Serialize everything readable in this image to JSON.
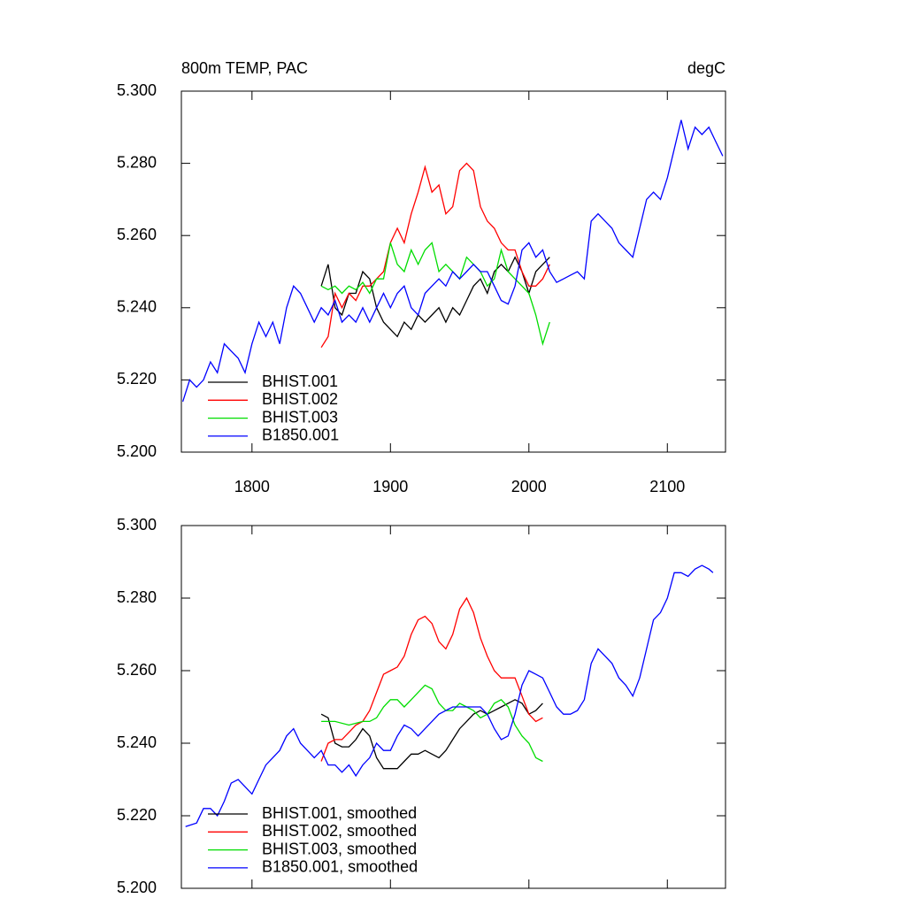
{
  "chart_data": [
    {
      "type": "line",
      "title": "800m TEMP, PAC",
      "right_title": "degC",
      "xlim": [
        1749,
        2142
      ],
      "xticks": [
        1800,
        1900,
        2000,
        2100
      ],
      "ylim": [
        5.2,
        5.3
      ],
      "yticks": [
        {
          "value": 5.2,
          "label": "5.200"
        },
        {
          "value": 5.22,
          "label": "5.220"
        },
        {
          "value": 5.24,
          "label": "5.240"
        },
        {
          "value": 5.26,
          "label": "5.260"
        },
        {
          "value": 5.28,
          "label": "5.280"
        },
        {
          "value": 5.3,
          "label": "5.300"
        }
      ],
      "grid": false,
      "legend": "lower left",
      "series": [
        {
          "name": "BHIST.001",
          "color": "#000000",
          "x": [
            1850,
            1855,
            1860,
            1865,
            1870,
            1875,
            1880,
            1885,
            1890,
            1895,
            1900,
            1905,
            1910,
            1915,
            1920,
            1925,
            1930,
            1935,
            1940,
            1945,
            1950,
            1955,
            1960,
            1965,
            1970,
            1975,
            1980,
            1985,
            1990,
            1995,
            2000,
            2005,
            2010,
            2015
          ],
          "values": [
            5.246,
            5.252,
            5.24,
            5.238,
            5.244,
            5.244,
            5.25,
            5.248,
            5.24,
            5.236,
            5.234,
            5.232,
            5.236,
            5.234,
            5.238,
            5.236,
            5.238,
            5.24,
            5.236,
            5.24,
            5.238,
            5.242,
            5.246,
            5.248,
            5.244,
            5.25,
            5.252,
            5.25,
            5.254,
            5.25,
            5.244,
            5.25,
            5.252,
            5.254
          ]
        },
        {
          "name": "BHIST.002",
          "color": "#ff0000",
          "x": [
            1850,
            1855,
            1860,
            1865,
            1870,
            1875,
            1880,
            1885,
            1890,
            1895,
            1900,
            1905,
            1910,
            1915,
            1920,
            1925,
            1930,
            1935,
            1940,
            1945,
            1950,
            1955,
            1960,
            1965,
            1970,
            1975,
            1980,
            1985,
            1990,
            1995,
            2000,
            2005,
            2010,
            2015
          ],
          "values": [
            5.229,
            5.232,
            5.244,
            5.24,
            5.244,
            5.242,
            5.246,
            5.246,
            5.248,
            5.25,
            5.258,
            5.262,
            5.258,
            5.266,
            5.272,
            5.279,
            5.272,
            5.274,
            5.266,
            5.268,
            5.278,
            5.28,
            5.278,
            5.268,
            5.264,
            5.262,
            5.258,
            5.256,
            5.256,
            5.25,
            5.246,
            5.246,
            5.248,
            5.252
          ]
        },
        {
          "name": "BHIST.003",
          "color": "#00dd00",
          "x": [
            1850,
            1855,
            1860,
            1865,
            1870,
            1875,
            1880,
            1885,
            1890,
            1895,
            1900,
            1905,
            1910,
            1915,
            1920,
            1925,
            1930,
            1935,
            1940,
            1945,
            1950,
            1955,
            1960,
            1965,
            1970,
            1975,
            1980,
            1985,
            1990,
            1995,
            2000,
            2005,
            2010,
            2015
          ],
          "values": [
            5.246,
            5.245,
            5.246,
            5.244,
            5.246,
            5.245,
            5.247,
            5.244,
            5.248,
            5.248,
            5.258,
            5.252,
            5.25,
            5.256,
            5.252,
            5.256,
            5.258,
            5.25,
            5.252,
            5.25,
            5.248,
            5.254,
            5.252,
            5.25,
            5.246,
            5.248,
            5.256,
            5.25,
            5.248,
            5.246,
            5.244,
            5.238,
            5.23,
            5.236
          ]
        },
        {
          "name": "B1850.001",
          "color": "#0000ff",
          "x": [
            1750,
            1755,
            1760,
            1765,
            1770,
            1775,
            1780,
            1785,
            1790,
            1795,
            1800,
            1805,
            1810,
            1815,
            1820,
            1825,
            1830,
            1835,
            1840,
            1845,
            1850,
            1855,
            1860,
            1865,
            1870,
            1875,
            1880,
            1885,
            1890,
            1895,
            1900,
            1905,
            1910,
            1915,
            1920,
            1925,
            1930,
            1935,
            1940,
            1945,
            1950,
            1955,
            1960,
            1965,
            1970,
            1975,
            1980,
            1985,
            1990,
            1995,
            2000,
            2005,
            2010,
            2015,
            2020,
            2025,
            2030,
            2035,
            2040,
            2045,
            2050,
            2055,
            2060,
            2065,
            2070,
            2075,
            2080,
            2085,
            2090,
            2095,
            2100,
            2105,
            2110,
            2115,
            2120,
            2125,
            2130,
            2135,
            2140
          ],
          "values": [
            5.214,
            5.22,
            5.218,
            5.22,
            5.225,
            5.222,
            5.23,
            5.228,
            5.226,
            5.222,
            5.23,
            5.236,
            5.232,
            5.236,
            5.23,
            5.24,
            5.246,
            5.244,
            5.24,
            5.236,
            5.24,
            5.238,
            5.242,
            5.236,
            5.238,
            5.236,
            5.24,
            5.236,
            5.24,
            5.244,
            5.24,
            5.244,
            5.246,
            5.24,
            5.238,
            5.244,
            5.246,
            5.248,
            5.246,
            5.25,
            5.248,
            5.25,
            5.252,
            5.25,
            5.25,
            5.246,
            5.242,
            5.241,
            5.246,
            5.256,
            5.258,
            5.254,
            5.256,
            5.25,
            5.247,
            5.248,
            5.249,
            5.25,
            5.248,
            5.264,
            5.266,
            5.264,
            5.262,
            5.258,
            5.256,
            5.254,
            5.262,
            5.27,
            5.272,
            5.27,
            5.276,
            5.284,
            5.292,
            5.284,
            5.29,
            5.288,
            5.29,
            5.286,
            5.282
          ]
        }
      ]
    },
    {
      "type": "line",
      "xlim": [
        1749,
        2142
      ],
      "xticks": [
        1800,
        1900,
        2000,
        2100
      ],
      "ylim": [
        5.2,
        5.3
      ],
      "yticks": [
        {
          "value": 5.2,
          "label": "5.200"
        },
        {
          "value": 5.22,
          "label": "5.220"
        },
        {
          "value": 5.24,
          "label": "5.240"
        },
        {
          "value": 5.26,
          "label": "5.260"
        },
        {
          "value": 5.28,
          "label": "5.280"
        },
        {
          "value": 5.3,
          "label": "5.300"
        }
      ],
      "grid": false,
      "legend": "lower left",
      "series": [
        {
          "name": "BHIST.001, smoothed",
          "color": "#000000",
          "x": [
            1850,
            1855,
            1860,
            1865,
            1870,
            1875,
            1880,
            1885,
            1890,
            1895,
            1900,
            1905,
            1910,
            1915,
            1920,
            1925,
            1930,
            1935,
            1940,
            1945,
            1950,
            1955,
            1960,
            1965,
            1970,
            1975,
            1980,
            1985,
            1990,
            1995,
            2000,
            2005,
            2010
          ],
          "values": [
            5.248,
            5.247,
            5.24,
            5.239,
            5.239,
            5.241,
            5.244,
            5.242,
            5.236,
            5.233,
            5.233,
            5.233,
            5.235,
            5.237,
            5.237,
            5.238,
            5.237,
            5.236,
            5.238,
            5.241,
            5.244,
            5.246,
            5.248,
            5.249,
            5.248,
            5.249,
            5.25,
            5.251,
            5.252,
            5.251,
            5.248,
            5.249,
            5.251
          ]
        },
        {
          "name": "BHIST.002, smoothed",
          "color": "#ff0000",
          "x": [
            1850,
            1855,
            1860,
            1865,
            1870,
            1875,
            1880,
            1885,
            1890,
            1895,
            1900,
            1905,
            1910,
            1915,
            1920,
            1925,
            1930,
            1935,
            1940,
            1945,
            1950,
            1955,
            1960,
            1965,
            1970,
            1975,
            1980,
            1985,
            1990,
            1995,
            2000,
            2005,
            2010
          ],
          "values": [
            5.235,
            5.24,
            5.241,
            5.241,
            5.243,
            5.245,
            5.246,
            5.249,
            5.254,
            5.259,
            5.26,
            5.261,
            5.264,
            5.27,
            5.274,
            5.275,
            5.273,
            5.268,
            5.266,
            5.27,
            5.277,
            5.28,
            5.276,
            5.269,
            5.264,
            5.26,
            5.258,
            5.258,
            5.258,
            5.253,
            5.248,
            5.246,
            5.247
          ]
        },
        {
          "name": "BHIST.003, smoothed",
          "color": "#00dd00",
          "x": [
            1850,
            1860,
            1870,
            1880,
            1885,
            1890,
            1895,
            1900,
            1905,
            1910,
            1915,
            1920,
            1925,
            1930,
            1935,
            1940,
            1945,
            1950,
            1955,
            1960,
            1965,
            1970,
            1975,
            1980,
            1985,
            1990,
            1995,
            2000,
            2005,
            2010
          ],
          "values": [
            5.246,
            5.246,
            5.245,
            5.246,
            5.246,
            5.247,
            5.25,
            5.252,
            5.252,
            5.25,
            5.252,
            5.254,
            5.256,
            5.255,
            5.251,
            5.249,
            5.249,
            5.251,
            5.25,
            5.249,
            5.247,
            5.248,
            5.251,
            5.252,
            5.25,
            5.245,
            5.242,
            5.24,
            5.236,
            5.235
          ]
        },
        {
          "name": "B1850.001, smoothed",
          "color": "#0000ff",
          "x": [
            1752,
            1760,
            1765,
            1770,
            1775,
            1780,
            1785,
            1790,
            1795,
            1800,
            1805,
            1810,
            1815,
            1820,
            1825,
            1830,
            1835,
            1840,
            1845,
            1850,
            1855,
            1860,
            1865,
            1870,
            1875,
            1880,
            1885,
            1890,
            1895,
            1900,
            1905,
            1910,
            1915,
            1920,
            1925,
            1930,
            1935,
            1940,
            1945,
            1950,
            1955,
            1960,
            1965,
            1970,
            1975,
            1980,
            1985,
            1990,
            1995,
            2000,
            2005,
            2010,
            2015,
            2020,
            2025,
            2030,
            2035,
            2040,
            2045,
            2050,
            2055,
            2060,
            2065,
            2070,
            2075,
            2080,
            2085,
            2090,
            2095,
            2100,
            2105,
            2110,
            2115,
            2120,
            2125,
            2130,
            2133
          ],
          "values": [
            5.217,
            5.218,
            5.222,
            5.222,
            5.22,
            5.224,
            5.229,
            5.23,
            5.228,
            5.226,
            5.23,
            5.234,
            5.236,
            5.238,
            5.242,
            5.244,
            5.24,
            5.238,
            5.236,
            5.238,
            5.234,
            5.234,
            5.232,
            5.234,
            5.231,
            5.234,
            5.236,
            5.24,
            5.238,
            5.238,
            5.242,
            5.245,
            5.244,
            5.242,
            5.244,
            5.246,
            5.248,
            5.249,
            5.25,
            5.25,
            5.25,
            5.25,
            5.25,
            5.248,
            5.244,
            5.241,
            5.242,
            5.248,
            5.256,
            5.26,
            5.259,
            5.258,
            5.254,
            5.25,
            5.248,
            5.248,
            5.249,
            5.252,
            5.262,
            5.266,
            5.264,
            5.262,
            5.258,
            5.256,
            5.253,
            5.258,
            5.266,
            5.274,
            5.276,
            5.28,
            5.287,
            5.287,
            5.286,
            5.288,
            5.289,
            5.288,
            5.287
          ]
        }
      ]
    }
  ]
}
